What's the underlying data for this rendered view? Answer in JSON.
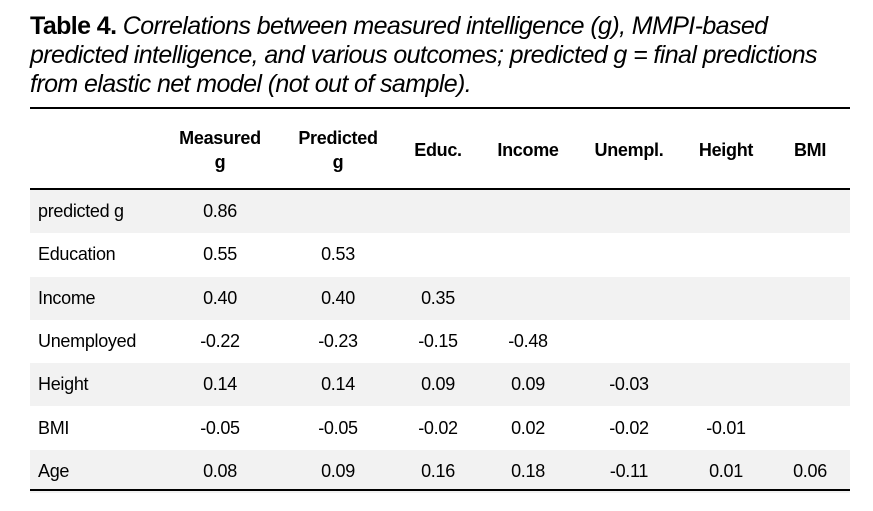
{
  "caption": {
    "label": "Table 4.",
    "text": "Correlations between measured intelligence (g), MMPI-based predicted intelligence, and various outcomes; predicted g = final predictions from elastic net model (not out of sample)."
  },
  "columns": [
    {
      "line1": "Measured",
      "line2": "g"
    },
    {
      "line1": "Predicted",
      "line2": "g"
    },
    {
      "line1": "Educ.",
      "line2": ""
    },
    {
      "line1": "Income",
      "line2": ""
    },
    {
      "line1": "Unempl.",
      "line2": ""
    },
    {
      "line1": "Height",
      "line2": ""
    },
    {
      "line1": "BMI",
      "line2": ""
    }
  ],
  "rows": [
    {
      "label": "predicted g",
      "values": [
        "0.86",
        "",
        "",
        "",
        "",
        "",
        ""
      ]
    },
    {
      "label": "Education",
      "values": [
        "0.55",
        "0.53",
        "",
        "",
        "",
        "",
        ""
      ]
    },
    {
      "label": "Income",
      "values": [
        "0.40",
        "0.40",
        "0.35",
        "",
        "",
        "",
        ""
      ]
    },
    {
      "label": "Unemployed",
      "values": [
        "-0.22",
        "-0.23",
        "-0.15",
        "-0.48",
        "",
        "",
        ""
      ]
    },
    {
      "label": "Height",
      "values": [
        "0.14",
        "0.14",
        "0.09",
        "0.09",
        "-0.03",
        "",
        ""
      ]
    },
    {
      "label": "BMI",
      "values": [
        "-0.05",
        "-0.05",
        "-0.02",
        "0.02",
        "-0.02",
        "-0.01",
        ""
      ]
    },
    {
      "label": "Age",
      "values": [
        "0.08",
        "0.09",
        "0.16",
        "0.18",
        "-0.11",
        "0.01",
        "0.06"
      ]
    }
  ]
}
